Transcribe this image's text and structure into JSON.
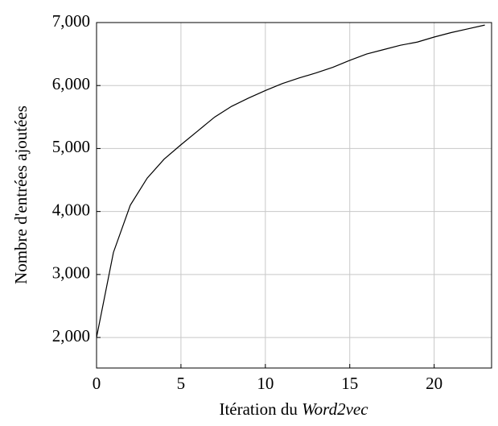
{
  "chart_data": {
    "type": "line",
    "xlabel": [
      "Itération du",
      "Word2vec"
    ],
    "ylabel": "Nombre d'entrées ajoutées",
    "x": [
      0,
      1,
      2,
      3,
      4,
      5,
      6,
      7,
      8,
      9,
      10,
      11,
      12,
      13,
      14,
      15,
      16,
      17,
      18,
      19,
      20,
      21,
      22,
      23
    ],
    "series": [
      {
        "color": "#000000",
        "values": [
          2000,
          3350,
          4100,
          4530,
          4830,
          5060,
          5280,
          5500,
          5670,
          5800,
          5920,
          6030,
          6120,
          6200,
          6290,
          6400,
          6500,
          6570,
          6640,
          6690,
          6770,
          6840,
          6900,
          6960
        ]
      }
    ],
    "xlim": [
      0,
      23.4
    ],
    "ylim": [
      1515,
      7000
    ],
    "xticks": [
      0,
      5,
      10,
      15,
      20
    ],
    "yticks": [
      {
        "value": 2000,
        "label": "2,000"
      },
      {
        "value": 3000,
        "label": "3,000"
      },
      {
        "value": 4000,
        "label": "4,000"
      },
      {
        "value": 5000,
        "label": "5,000"
      },
      {
        "value": 6000,
        "label": "6,000"
      },
      {
        "value": 7000,
        "label": "7,000"
      }
    ],
    "grid": true
  }
}
